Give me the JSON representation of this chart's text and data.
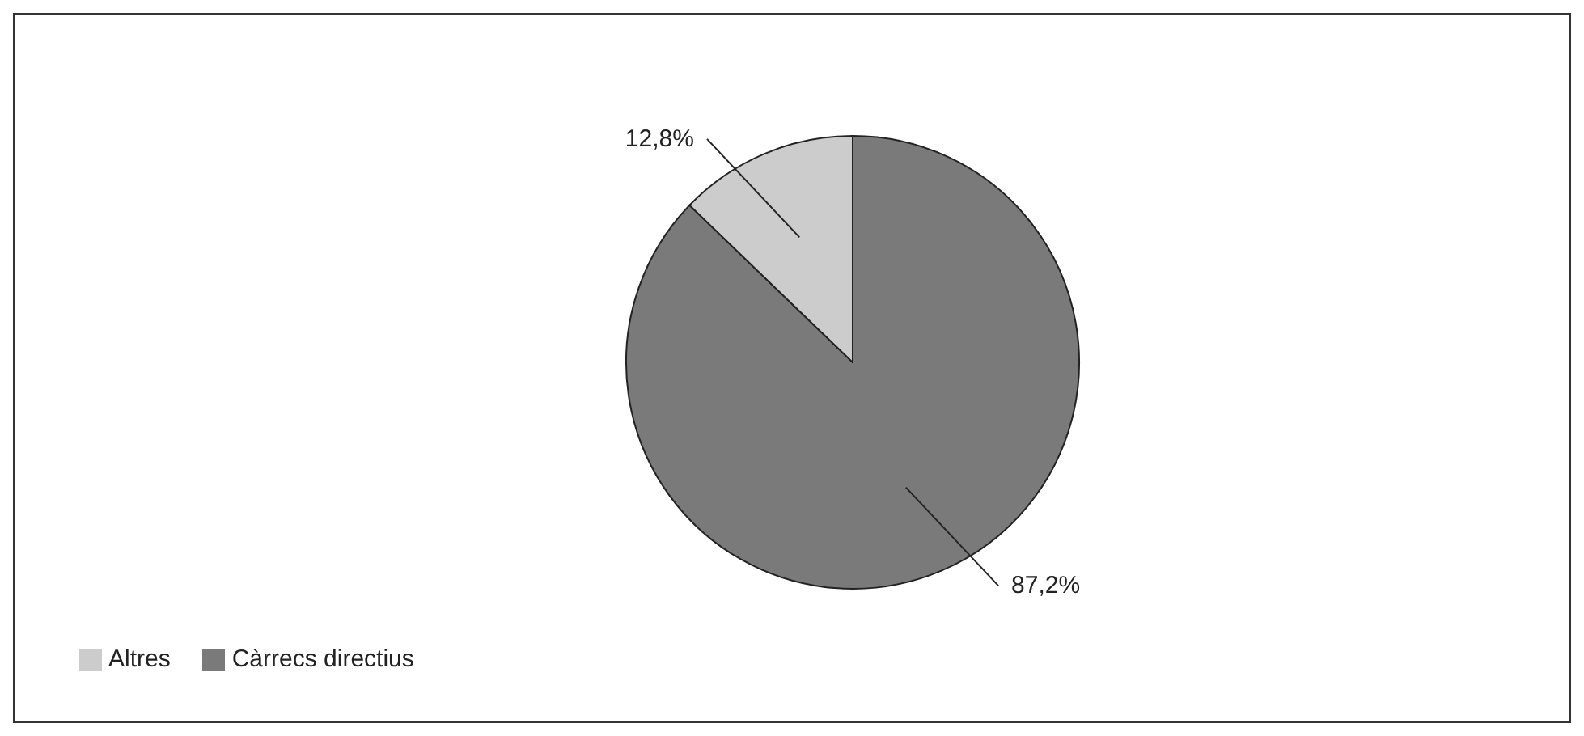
{
  "chart_data": {
    "type": "pie",
    "categories": [
      "Càrrecs directius",
      "Altres"
    ],
    "values": [
      87.2,
      12.8
    ],
    "colors": [
      "#7a7a7a",
      "#cccccc"
    ],
    "value_labels": [
      "87,2%",
      "12,8%"
    ],
    "legend": "bottom left"
  }
}
